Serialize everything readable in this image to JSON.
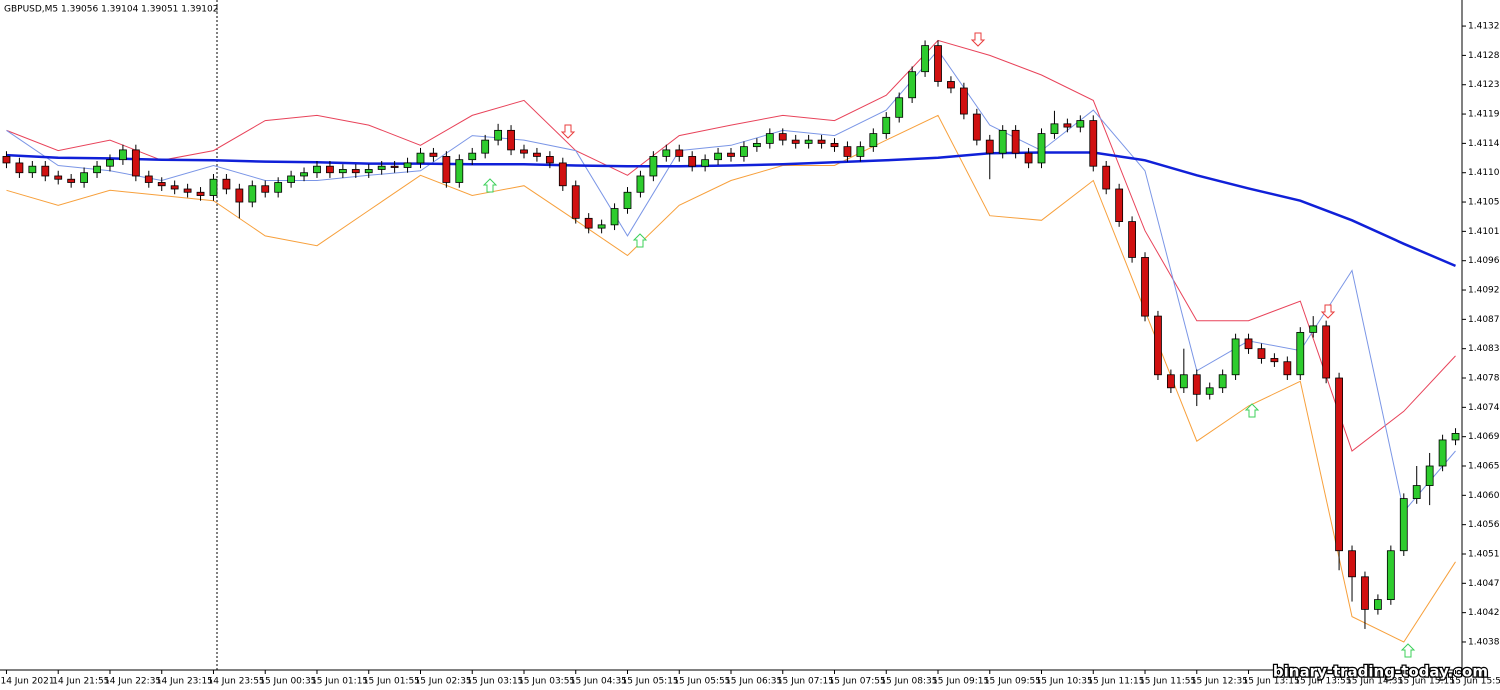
{
  "chart_data": {
    "type": "candlestick",
    "title": "GBPUSD,M5  1.39056 1.39104 1.39051 1.39102",
    "watermark": "binary-trading-today.com",
    "up_color": "#2ecc2e",
    "down_color": "#d01010",
    "wick_color": "#000000",
    "categories": [
      "14 Jun 2021",
      null,
      null,
      null,
      "14 Jun 21:55",
      null,
      null,
      null,
      "14 Jun 22:35",
      null,
      null,
      null,
      "14 Jun 23:15",
      null,
      null,
      null,
      "14 Jun 23:55",
      null,
      null,
      null,
      "15 Jun 00:35",
      null,
      null,
      null,
      "15 Jun 01:15",
      null,
      null,
      null,
      "15 Jun 01:55",
      null,
      null,
      null,
      "15 Jun 02:35",
      null,
      null,
      null,
      "15 Jun 03:15",
      null,
      null,
      null,
      "15 Jun 03:55",
      null,
      null,
      null,
      "15 Jun 04:35",
      null,
      null,
      null,
      "15 Jun 05:15",
      null,
      null,
      null,
      "15 Jun 05:55",
      null,
      null,
      null,
      "15 Jun 06:35",
      null,
      null,
      null,
      "15 Jun 07:15",
      null,
      null,
      null,
      "15 Jun 07:55",
      null,
      null,
      null,
      "15 Jun 08:35",
      null,
      null,
      null,
      "15 Jun 09:15",
      null,
      null,
      null,
      "15 Jun 09:55",
      null,
      null,
      null,
      "15 Jun 10:35",
      null,
      null,
      null,
      "15 Jun 11:15",
      null,
      null,
      null,
      "15 Jun 11:55",
      null,
      null,
      null,
      "15 Jun 12:35",
      null,
      null,
      null,
      "15 Jun 13:15",
      null,
      null,
      null,
      "15 Jun 13:55",
      null,
      null,
      null,
      "15 Jun 14:35",
      null,
      null,
      null,
      "15 Jun 15:15",
      null,
      null,
      null,
      "15 Jun 15:5"
    ],
    "open": [
      1.41125,
      1.41115,
      1.411,
      1.4111,
      1.41095,
      1.4109,
      1.41085,
      1.411,
      1.4111,
      1.4112,
      1.41135,
      1.41095,
      1.41085,
      1.4108,
      1.41075,
      1.4107,
      1.41065,
      1.4109,
      1.41075,
      1.41055,
      1.4108,
      1.4107,
      1.41085,
      1.41095,
      1.411,
      1.4111,
      1.411,
      1.41105,
      1.411,
      1.41105,
      1.4111,
      1.41108,
      1.41115,
      1.4113,
      1.41125,
      1.41085,
      1.4112,
      1.4113,
      1.4115,
      1.41165,
      1.41135,
      1.4113,
      1.41125,
      1.41115,
      1.4108,
      1.4103,
      1.41015,
      1.4102,
      1.41045,
      1.4107,
      1.41095,
      1.41125,
      1.41135,
      1.41125,
      1.4111,
      1.4112,
      1.4113,
      1.41125,
      1.4114,
      1.41145,
      1.4116,
      1.4115,
      1.41145,
      1.4115,
      1.41145,
      1.4114,
      1.41125,
      1.4114,
      1.4116,
      1.41185,
      1.41215,
      1.41255,
      1.41295,
      1.4124,
      1.4123,
      1.4119,
      1.4115,
      1.4113,
      1.41165,
      1.4113,
      1.41115,
      1.4116,
      1.41175,
      1.4117,
      1.4118,
      1.4111,
      1.41075,
      1.41025,
      1.4097,
      1.4088,
      1.4079,
      1.4077,
      1.4079,
      1.4076,
      1.4077,
      1.4079,
      1.40845,
      1.4083,
      1.40815,
      1.4081,
      1.4079,
      1.40855,
      1.40865,
      1.40785,
      1.4052,
      1.4048,
      1.4043,
      1.40445,
      1.4052,
      1.406,
      1.4062,
      1.4065,
      1.4069
    ],
    "high": [
      1.41133,
      1.41123,
      1.41118,
      1.41118,
      1.41103,
      1.41098,
      1.41108,
      1.41118,
      1.41128,
      1.41143,
      1.41143,
      1.41103,
      1.41093,
      1.41088,
      1.41083,
      1.41078,
      1.41098,
      1.41098,
      1.41083,
      1.41088,
      1.41088,
      1.41093,
      1.41103,
      1.41108,
      1.41118,
      1.41118,
      1.41113,
      1.41113,
      1.41113,
      1.41118,
      1.41118,
      1.41123,
      1.41138,
      1.41138,
      1.41133,
      1.41128,
      1.41138,
      1.41158,
      1.41175,
      1.41173,
      1.41143,
      1.41138,
      1.41133,
      1.41123,
      1.41088,
      1.41038,
      1.41028,
      1.41053,
      1.41078,
      1.41103,
      1.41133,
      1.41143,
      1.41143,
      1.41133,
      1.41128,
      1.41138,
      1.41138,
      1.41148,
      1.41153,
      1.41168,
      1.41168,
      1.41158,
      1.41158,
      1.41158,
      1.41153,
      1.41148,
      1.41148,
      1.41168,
      1.41193,
      1.41223,
      1.41263,
      1.41303,
      1.41303,
      1.41248,
      1.41238,
      1.41198,
      1.41158,
      1.41173,
      1.41173,
      1.41138,
      1.41168,
      1.41195,
      1.41183,
      1.41188,
      1.41188,
      1.41118,
      1.41083,
      1.41033,
      1.40978,
      1.40888,
      1.40798,
      1.4083,
      1.40798,
      1.40778,
      1.40798,
      1.40853,
      1.40853,
      1.40838,
      1.40823,
      1.40818,
      1.40863,
      1.4088,
      1.40873,
      1.40793,
      1.40528,
      1.40488,
      1.40453,
      1.40528,
      1.40608,
      1.4065,
      1.4067,
      1.40698,
      1.40708
    ],
    "low": [
      1.41107,
      1.41092,
      1.41092,
      1.41087,
      1.41082,
      1.41077,
      1.41077,
      1.41092,
      1.41102,
      1.41112,
      1.41087,
      1.41077,
      1.41072,
      1.41067,
      1.41062,
      1.41057,
      1.41057,
      1.41067,
      1.4103,
      1.41047,
      1.41062,
      1.41062,
      1.41077,
      1.41087,
      1.41092,
      1.41092,
      1.41092,
      1.41092,
      1.41092,
      1.41097,
      1.411,
      1.411,
      1.41107,
      1.41117,
      1.41077,
      1.41077,
      1.41112,
      1.41122,
      1.41142,
      1.41127,
      1.41122,
      1.41117,
      1.41107,
      1.41072,
      1.41022,
      1.41007,
      1.41007,
      1.41012,
      1.41037,
      1.41062,
      1.41087,
      1.41117,
      1.41117,
      1.41102,
      1.41102,
      1.41112,
      1.41117,
      1.41117,
      1.41132,
      1.41137,
      1.41142,
      1.41137,
      1.41137,
      1.41137,
      1.41132,
      1.41117,
      1.41117,
      1.41132,
      1.41152,
      1.41177,
      1.41207,
      1.41247,
      1.41232,
      1.41222,
      1.41182,
      1.41142,
      1.4109,
      1.41122,
      1.41122,
      1.41107,
      1.41107,
      1.41152,
      1.41162,
      1.41162,
      1.41102,
      1.41067,
      1.41017,
      1.40962,
      1.40872,
      1.40782,
      1.40762,
      1.40762,
      1.40742,
      1.40752,
      1.40762,
      1.40782,
      1.40822,
      1.40807,
      1.40802,
      1.40782,
      1.40782,
      1.40847,
      1.40777,
      1.4049,
      1.40442,
      1.404,
      1.40422,
      1.40437,
      1.40512,
      1.40592,
      1.4059,
      1.40642,
      1.40682
    ],
    "close": [
      1.41115,
      1.411,
      1.4111,
      1.41095,
      1.4109,
      1.41085,
      1.411,
      1.4111,
      1.4112,
      1.41135,
      1.41095,
      1.41085,
      1.4108,
      1.41075,
      1.4107,
      1.41065,
      1.4109,
      1.41075,
      1.41055,
      1.4108,
      1.4107,
      1.41085,
      1.41095,
      1.411,
      1.4111,
      1.411,
      1.41105,
      1.411,
      1.41105,
      1.4111,
      1.41108,
      1.41115,
      1.4113,
      1.41125,
      1.41085,
      1.4112,
      1.4113,
      1.4115,
      1.41165,
      1.41135,
      1.4113,
      1.41125,
      1.41115,
      1.4108,
      1.4103,
      1.41015,
      1.4102,
      1.41045,
      1.4107,
      1.41095,
      1.41125,
      1.41135,
      1.41125,
      1.4111,
      1.4112,
      1.4113,
      1.41125,
      1.4114,
      1.41145,
      1.4116,
      1.4115,
      1.41145,
      1.4115,
      1.41145,
      1.4114,
      1.41125,
      1.4114,
      1.4116,
      1.41185,
      1.41215,
      1.41255,
      1.41295,
      1.4124,
      1.4123,
      1.4119,
      1.4115,
      1.4113,
      1.41165,
      1.4113,
      1.41115,
      1.4116,
      1.41175,
      1.4117,
      1.4118,
      1.4111,
      1.41075,
      1.41025,
      1.4097,
      1.4088,
      1.4079,
      1.4077,
      1.4079,
      1.4076,
      1.4077,
      1.4079,
      1.40845,
      1.4083,
      1.40815,
      1.4081,
      1.4079,
      1.40855,
      1.40865,
      1.40785,
      1.4052,
      1.4048,
      1.4043,
      1.40445,
      1.4052,
      1.406,
      1.4062,
      1.4065,
      1.4069,
      1.407
    ],
    "lines": [
      {
        "color": "#e8435a",
        "values": [
          1.41165,
          1.41134,
          1.4115,
          1.41119,
          1.41134,
          1.4118,
          1.41188,
          1.41173,
          1.41142,
          1.41188,
          1.41211,
          1.41134,
          1.41096,
          1.41157,
          1.41173,
          1.41188,
          1.4118,
          1.41219,
          1.41303,
          1.4128,
          1.4125,
          1.41211,
          1.41011,
          1.40873,
          1.40873,
          1.40903,
          1.40673,
          1.40734,
          1.40819
        ]
      },
      {
        "color": "#f7a03c",
        "values": [
          1.41073,
          1.4105,
          1.41073,
          1.41065,
          1.41057,
          1.41003,
          1.40988,
          1.41042,
          1.41096,
          1.41065,
          1.4108,
          1.41027,
          1.40973,
          1.4105,
          1.41088,
          1.41111,
          1.41111,
          1.4115,
          1.41188,
          1.41034,
          1.41027,
          1.41088,
          1.40888,
          1.40688,
          1.40742,
          1.4078,
          1.40419,
          1.4038,
          1.40503
        ]
      },
      {
        "color": "#7b96e6",
        "values": [
          1.41165,
          1.41111,
          1.41103,
          1.41088,
          1.41111,
          1.41088,
          1.41088,
          1.41096,
          1.41103,
          1.41157,
          1.4115,
          1.41134,
          1.41003,
          1.41134,
          1.41142,
          1.41165,
          1.41157,
          1.41196,
          1.41288,
          1.41173,
          1.41134,
          1.41196,
          1.41103,
          1.40796,
          1.40842,
          1.40827,
          1.4095,
          1.4058,
          1.40673
        ]
      },
      {
        "color": "#1020d8",
        "values": [
          1.41127,
          1.41123,
          1.41122,
          1.4112,
          1.41119,
          1.41117,
          1.41116,
          1.41114,
          1.41114,
          1.41113,
          1.41113,
          1.41111,
          1.4111,
          1.4111,
          1.41111,
          1.41113,
          1.41116,
          1.41119,
          1.41123,
          1.4113,
          1.41131,
          1.41131,
          1.41119,
          1.41096,
          1.41076,
          1.41057,
          1.41027,
          1.40991,
          1.40957
        ]
      }
    ],
    "ylim": [
      1.40337,
      1.41365
    ],
    "yticks": [
      1.41325,
      {
        "value": 1.4128,
        "label": "1.41280"
      },
      1.41235,
      {
        "value": 1.4119,
        "label": "1.41190"
      },
      1.41145,
      {
        "value": 1.411,
        "label": "1.41100"
      },
      1.41055,
      {
        "value": 1.4101,
        "label": "1.41010"
      },
      1.40965,
      {
        "value": 1.4092,
        "label": "1.40920"
      },
      1.40875,
      {
        "value": 1.4083,
        "label": "1.40830"
      },
      1.40785,
      {
        "value": 1.4074,
        "label": "1.40740"
      },
      1.40695,
      {
        "value": 1.4065,
        "label": "1.40650"
      },
      1.40605,
      {
        "value": 1.4056,
        "label": "1.40560"
      },
      1.40515,
      {
        "value": 1.4047,
        "label": "1.40470"
      },
      1.40425,
      {
        "value": 1.4038,
        "label": "1.40380"
      }
    ]
  }
}
